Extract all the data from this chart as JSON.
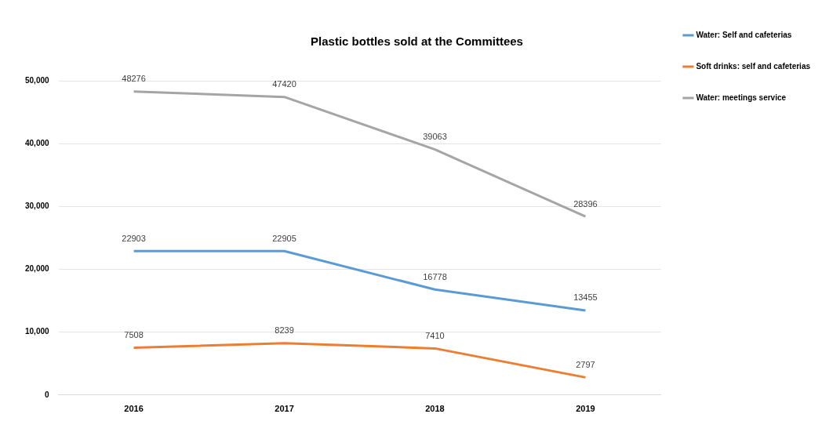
{
  "chart_data": {
    "type": "line",
    "title": "Plastic bottles sold at the Committees",
    "categories": [
      "2016",
      "2017",
      "2018",
      "2019"
    ],
    "series": [
      {
        "name": "Water: Self and cafeterias",
        "color": "#5b9bd5",
        "values": [
          22903,
          22905,
          16778,
          13455
        ]
      },
      {
        "name": "Soft drinks: self and cafeterias",
        "color": "#ed7d31",
        "values": [
          7508,
          8239,
          7410,
          2797
        ]
      },
      {
        "name": "Water: meetings service",
        "color": "#a5a5a5",
        "values": [
          48276,
          47420,
          39063,
          28396
        ]
      }
    ],
    "ylim": [
      0,
      50000
    ],
    "yticks": [
      0,
      {
        "value": 10000,
        "label": "10,000"
      },
      {
        "value": 20000,
        "label": "20,000"
      },
      {
        "value": 30000,
        "label": "30,000"
      },
      {
        "value": 40000,
        "label": "40,000"
      },
      {
        "value": 50000,
        "label": "50,000"
      }
    ],
    "grid": "y",
    "legend": "top right",
    "marker": "none",
    "line_style": "solid",
    "data_labels": true
  }
}
